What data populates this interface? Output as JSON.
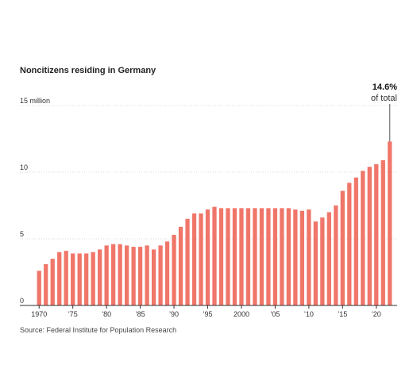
{
  "title": "Noncitizens residing in Germany",
  "source": "Source: Federal Institute for Population Research",
  "annotation": {
    "value": "14.6%",
    "label": "of total"
  },
  "colors": {
    "bar": "#f0766a",
    "grid": "#d9d9d9",
    "axis": "#333333"
  },
  "chart_data": {
    "type": "bar",
    "title": "Noncitizens residing in Germany",
    "xlabel": "",
    "ylabel": "",
    "ylim": [
      0,
      15
    ],
    "grid": true,
    "yticks": [
      {
        "value": 0,
        "label": "0"
      },
      {
        "value": 5,
        "label": "5"
      },
      {
        "value": 10,
        "label": "10"
      },
      {
        "value": 15,
        "label": "15 million"
      }
    ],
    "xticks": [
      {
        "year": 1970,
        "label": "1970"
      },
      {
        "year": 1975,
        "label": "’75"
      },
      {
        "year": 1980,
        "label": "’80"
      },
      {
        "year": 1985,
        "label": "’85"
      },
      {
        "year": 1990,
        "label": "’90"
      },
      {
        "year": 1995,
        "label": "’95"
      },
      {
        "year": 2000,
        "label": "2000"
      },
      {
        "year": 2005,
        "label": "’05"
      },
      {
        "year": 2010,
        "label": "’10"
      },
      {
        "year": 2015,
        "label": "’15"
      },
      {
        "year": 2020,
        "label": "’20"
      }
    ],
    "categories": [
      1970,
      1971,
      1972,
      1973,
      1974,
      1975,
      1976,
      1977,
      1978,
      1979,
      1980,
      1981,
      1982,
      1983,
      1984,
      1985,
      1986,
      1987,
      1988,
      1989,
      1990,
      1991,
      1992,
      1993,
      1994,
      1995,
      1996,
      1997,
      1998,
      1999,
      2000,
      2001,
      2002,
      2003,
      2004,
      2005,
      2006,
      2007,
      2008,
      2009,
      2010,
      2011,
      2012,
      2013,
      2014,
      2015,
      2016,
      2017,
      2018,
      2019,
      2020,
      2021,
      2022
    ],
    "values": [
      2.6,
      3.1,
      3.5,
      4.0,
      4.1,
      3.9,
      3.9,
      3.9,
      4.0,
      4.2,
      4.5,
      4.6,
      4.6,
      4.5,
      4.4,
      4.4,
      4.5,
      4.2,
      4.5,
      4.8,
      5.3,
      5.9,
      6.5,
      6.9,
      6.9,
      7.2,
      7.4,
      7.3,
      7.3,
      7.3,
      7.3,
      7.3,
      7.3,
      7.3,
      7.3,
      7.3,
      7.3,
      7.3,
      7.2,
      7.1,
      7.2,
      6.3,
      6.6,
      7.0,
      7.5,
      8.6,
      9.2,
      9.6,
      10.1,
      10.4,
      10.6,
      10.9,
      12.3
    ]
  }
}
